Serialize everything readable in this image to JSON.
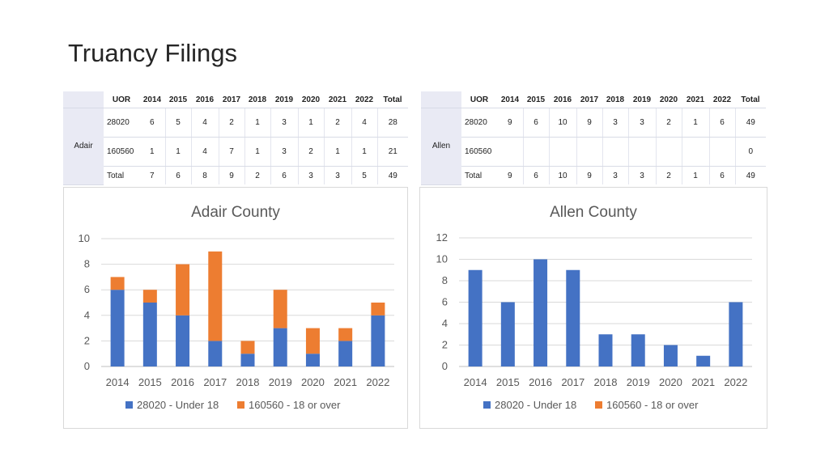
{
  "page": {
    "title": "Truancy Filings"
  },
  "tables": [
    {
      "county": "Adair",
      "headers": [
        "UOR",
        "2014",
        "2015",
        "2016",
        "2017",
        "2018",
        "2019",
        "2020",
        "2021",
        "2022",
        "Total"
      ],
      "rows": [
        {
          "label": "28020",
          "cells": [
            "6",
            "5",
            "4",
            "2",
            "1",
            "3",
            "1",
            "2",
            "4",
            "28"
          ]
        },
        {
          "label": "160560",
          "cells": [
            "1",
            "1",
            "4",
            "7",
            "1",
            "3",
            "2",
            "1",
            "1",
            "21"
          ]
        },
        {
          "label": "Total",
          "cells": [
            "7",
            "6",
            "8",
            "9",
            "2",
            "6",
            "3",
            "3",
            "5",
            "49"
          ]
        }
      ]
    },
    {
      "county": "Allen",
      "headers": [
        "UOR",
        "2014",
        "2015",
        "2016",
        "2017",
        "2018",
        "2019",
        "2020",
        "2021",
        "2022",
        "Total"
      ],
      "rows": [
        {
          "label": "28020",
          "cells": [
            "9",
            "6",
            "10",
            "9",
            "3",
            "3",
            "2",
            "1",
            "6",
            "49"
          ]
        },
        {
          "label": "160560",
          "cells": [
            "",
            "",
            "",
            "",
            "",
            "",
            "",
            "",
            "",
            "0"
          ]
        },
        {
          "label": "Total",
          "cells": [
            "9",
            "6",
            "10",
            "9",
            "3",
            "3",
            "2",
            "1",
            "6",
            "49"
          ]
        }
      ]
    }
  ],
  "chart_data": [
    {
      "type": "bar",
      "stacked": true,
      "title": "Adair County",
      "categories": [
        "2014",
        "2015",
        "2016",
        "2017",
        "2018",
        "2019",
        "2020",
        "2021",
        "2022"
      ],
      "series": [
        {
          "name": "28020 - Under 18",
          "color": "#4472C4",
          "values": [
            6,
            5,
            4,
            2,
            1,
            3,
            1,
            2,
            4
          ]
        },
        {
          "name": "160560 - 18 or over",
          "color": "#ED7D31",
          "values": [
            1,
            1,
            4,
            7,
            1,
            3,
            2,
            1,
            1
          ]
        }
      ],
      "ylim": [
        0,
        10
      ],
      "yticks": [
        0,
        2,
        4,
        6,
        8,
        10
      ],
      "grid": true,
      "legend": "bottom",
      "xlabel": "",
      "ylabel": ""
    },
    {
      "type": "bar",
      "stacked": true,
      "title": "Allen County",
      "categories": [
        "2014",
        "2015",
        "2016",
        "2017",
        "2018",
        "2019",
        "2020",
        "2021",
        "2022"
      ],
      "series": [
        {
          "name": "28020 - Under 18",
          "color": "#4472C4",
          "values": [
            9,
            6,
            10,
            9,
            3,
            3,
            2,
            1,
            6
          ]
        },
        {
          "name": "160560 - 18 or over",
          "color": "#ED7D31",
          "values": [
            0,
            0,
            0,
            0,
            0,
            0,
            0,
            0,
            0
          ]
        }
      ],
      "ylim": [
        0,
        12
      ],
      "yticks": [
        0,
        2,
        4,
        6,
        8,
        10,
        12
      ],
      "grid": true,
      "legend": "bottom",
      "xlabel": "",
      "ylabel": ""
    }
  ]
}
